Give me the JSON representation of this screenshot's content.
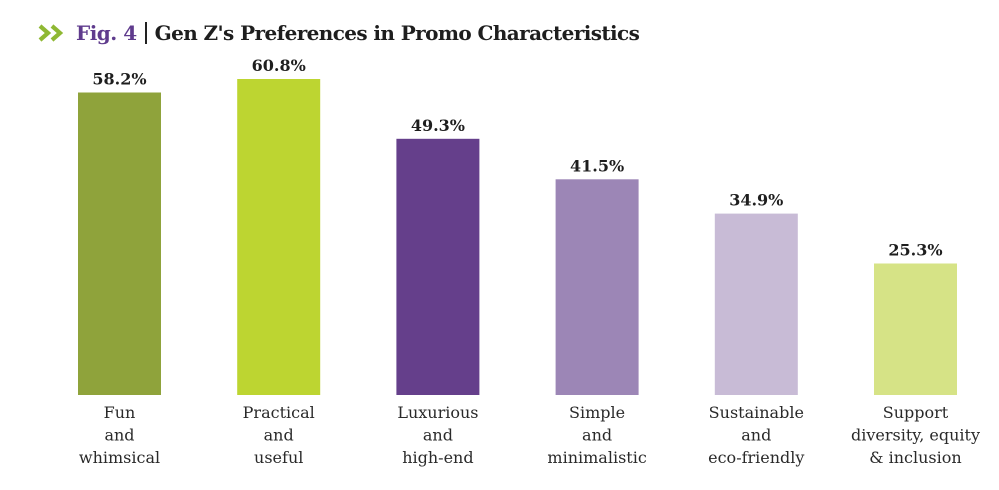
{
  "header": {
    "icon": "double-chevron-right-icon",
    "fig_label": "Fig. 4",
    "title": "Gen Z's Preferences in Promo Characteristics"
  },
  "colors": {
    "accent_green": "#8fb833",
    "fig_purple": "#5f3b8d",
    "text": "#1e1e1e"
  },
  "chart_data": {
    "type": "bar",
    "title": "Gen Z's Preferences in Promo Characteristics",
    "xlabel": "",
    "ylabel": "",
    "ylim": [
      0,
      60.8
    ],
    "grid": false,
    "legend": "none",
    "categories": [
      [
        "Fun",
        "and",
        "whimsical"
      ],
      [
        "Practical",
        "and",
        "useful"
      ],
      [
        "Luxurious",
        "and",
        "high-end"
      ],
      [
        "Simple",
        "and",
        "minimalistic"
      ],
      [
        "Sustainable",
        "and",
        "eco-friendly"
      ],
      [
        "Support",
        "diversity, equity",
        "& inclusion"
      ]
    ],
    "values": [
      58.2,
      60.8,
      49.3,
      41.5,
      34.9,
      25.3
    ],
    "value_labels": [
      "58.2%",
      "60.8%",
      "49.3%",
      "41.5%",
      "34.9%",
      "25.3%"
    ],
    "bar_colors": [
      "#8fa33b",
      "#bdd531",
      "#653f8b",
      "#9c86b6",
      "#c8bbd6",
      "#d6e386"
    ]
  }
}
